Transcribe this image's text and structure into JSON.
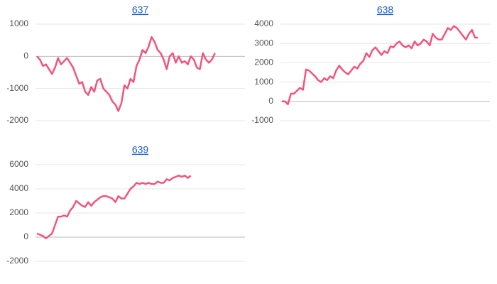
{
  "chart_data": [
    {
      "type": "line",
      "title": "637",
      "color": "#f2557a",
      "ylim": [
        -2000,
        1000
      ],
      "yticks": [
        -2000,
        -1000,
        0,
        1000
      ],
      "grid": true,
      "values": [
        0,
        -100,
        -300,
        -250,
        -400,
        -550,
        -350,
        -50,
        -250,
        -150,
        -50,
        -200,
        -350,
        -600,
        -850,
        -800,
        -1100,
        -1200,
        -950,
        -1100,
        -750,
        -700,
        -1000,
        -1100,
        -1200,
        -1400,
        -1500,
        -1700,
        -1450,
        -900,
        -1000,
        -700,
        -800,
        -300,
        -100,
        200,
        100,
        300,
        600,
        450,
        200,
        100,
        -100,
        -400,
        0,
        100,
        -200,
        0,
        -200,
        -150,
        -250,
        0,
        -100,
        -350,
        -400,
        100,
        -100,
        -200,
        -100,
        100
      ]
    },
    {
      "type": "line",
      "title": "638",
      "color": "#f2557a",
      "ylim": [
        -1000,
        4000
      ],
      "yticks": [
        -1000,
        0,
        1000,
        2000,
        3000,
        4000
      ],
      "grid": true,
      "values": [
        0,
        0,
        -150,
        400,
        400,
        550,
        700,
        600,
        1650,
        1600,
        1450,
        1300,
        1100,
        1000,
        1200,
        1100,
        1300,
        1200,
        1600,
        1850,
        1650,
        1500,
        1400,
        1600,
        1800,
        1700,
        1950,
        2100,
        2500,
        2300,
        2650,
        2800,
        2600,
        2400,
        2600,
        2500,
        2850,
        2800,
        3000,
        3100,
        2900,
        2800,
        2900,
        2750,
        3100,
        2900,
        3000,
        3200,
        3100,
        2900,
        3500,
        3300,
        3200,
        3200,
        3500,
        3800,
        3700,
        3900,
        3800,
        3600,
        3400,
        3200,
        3500,
        3700,
        3300,
        3300
      ]
    },
    {
      "type": "line",
      "title": "639",
      "color": "#f2557a",
      "ylim": [
        -2000,
        6000
      ],
      "yticks": [
        -2000,
        0,
        2000,
        4000,
        6000
      ],
      "grid": true,
      "values": [
        300,
        200,
        100,
        -100,
        100,
        300,
        1000,
        1700,
        1700,
        1800,
        1700,
        2200,
        2500,
        3000,
        2800,
        2600,
        2500,
        2900,
        2600,
        2900,
        3100,
        3300,
        3400,
        3400,
        3300,
        3200,
        2900,
        3400,
        3200,
        3200,
        3600,
        4000,
        4200,
        4500,
        4400,
        4500,
        4400,
        4500,
        4400,
        4400,
        4600,
        4500,
        4500,
        4800,
        4700,
        4900,
        5000,
        5100,
        5000,
        5100,
        4900,
        5100
      ]
    }
  ]
}
